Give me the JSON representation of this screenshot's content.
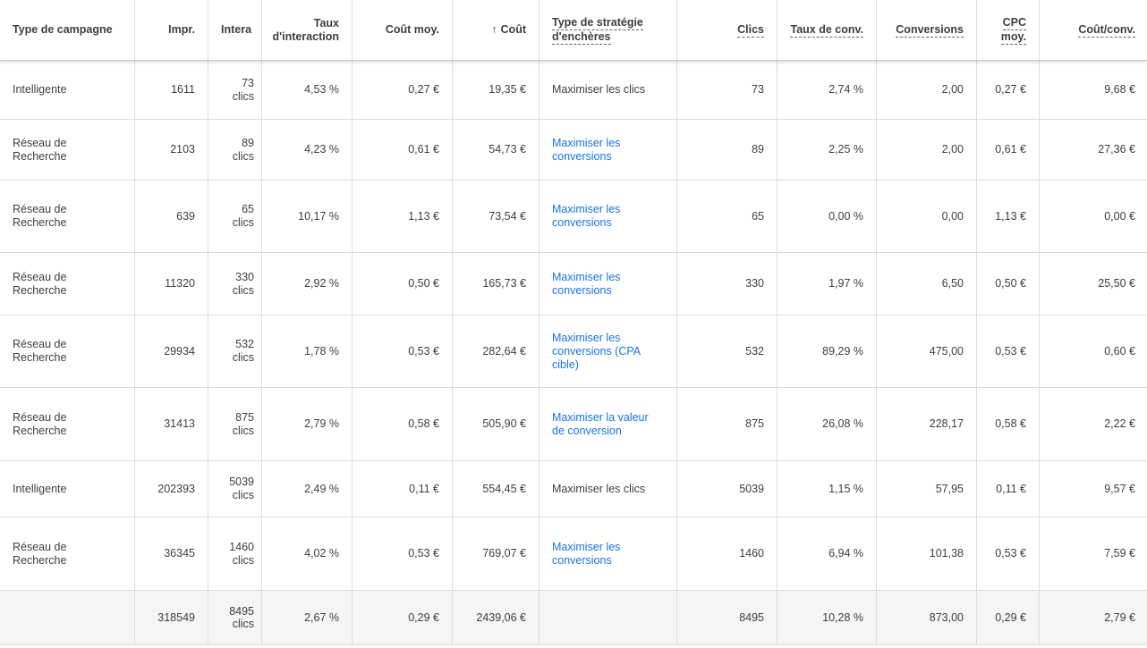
{
  "header": {
    "type": "Type de campagne",
    "impr": "Impr.",
    "inter": "Intera",
    "taux_interaction_l1": "Taux",
    "taux_interaction_l2": "d'interaction",
    "cout_moy": "Coût moy.",
    "cout_arrow": "↑",
    "cout": "Coût",
    "strat_l1": "Type de stratégie",
    "strat_l2": "d'enchères",
    "clics": "Clics",
    "taux_conv": "Taux de conv.",
    "conversions": "Conversions",
    "cpc_l1": "CPC",
    "cpc_l2": "moy.",
    "cout_conv": "Coût/conv."
  },
  "rows": [
    {
      "type": "Intelligente",
      "impr": "1611",
      "inter_n": "73",
      "inter_u": "clics",
      "taux": "4,53 %",
      "cout_moy": "0,27 €",
      "cout": "19,35 €",
      "strat": "Maximiser les clics",
      "strat_link": false,
      "clics": "73",
      "taux_conv": "2,74 %",
      "conv": "2,00",
      "cpc": "0,27 €",
      "cout_conv": "9,68 €"
    },
    {
      "type": "Réseau de Recherche",
      "impr": "2103",
      "inter_n": "89",
      "inter_u": "clics",
      "taux": "4,23 %",
      "cout_moy": "0,61 €",
      "cout": "54,73 €",
      "strat": "Maximiser les conversions",
      "strat_link": true,
      "clics": "89",
      "taux_conv": "2,25 %",
      "conv": "2,00",
      "cpc": "0,61 €",
      "cout_conv": "27,36 €"
    },
    {
      "type": "Réseau de Recherche",
      "impr": "639",
      "inter_n": "65",
      "inter_u": "clics",
      "taux": "10,17 %",
      "cout_moy": "1,13 €",
      "cout": "73,54 €",
      "strat": "Maximiser les conversions",
      "strat_link": true,
      "clics": "65",
      "taux_conv": "0,00 %",
      "conv": "0,00",
      "cpc": "1,13 €",
      "cout_conv": "0,00 €"
    },
    {
      "type": "Réseau de Recherche",
      "impr": "11320",
      "inter_n": "330",
      "inter_u": "clics",
      "taux": "2,92 %",
      "cout_moy": "0,50 €",
      "cout": "165,73 €",
      "strat": "Maximiser les conversions",
      "strat_link": true,
      "clics": "330",
      "taux_conv": "1,97 %",
      "conv": "6,50",
      "cpc": "0,50 €",
      "cout_conv": "25,50 €"
    },
    {
      "type": "Réseau de Recherche",
      "impr": "29934",
      "inter_n": "532",
      "inter_u": "clics",
      "taux": "1,78 %",
      "cout_moy": "0,53 €",
      "cout": "282,64 €",
      "strat": "Maximiser les conversions (CPA cible)",
      "strat_link": true,
      "clics": "532",
      "taux_conv": "89,29 %",
      "conv": "475,00",
      "cpc": "0,53 €",
      "cout_conv": "0,60 €"
    },
    {
      "type": "Réseau de Recherche",
      "impr": "31413",
      "inter_n": "875",
      "inter_u": "clics",
      "taux": "2,79 %",
      "cout_moy": "0,58 €",
      "cout": "505,90 €",
      "strat": "Maximiser la valeur de conversion",
      "strat_link": true,
      "clics": "875",
      "taux_conv": "26,08 %",
      "conv": "228,17",
      "cpc": "0,58 €",
      "cout_conv": "2,22 €"
    },
    {
      "type": "Intelligente",
      "impr": "202393",
      "inter_n": "5039",
      "inter_u": "clics",
      "taux": "2,49 %",
      "cout_moy": "0,11 €",
      "cout": "554,45 €",
      "strat": "Maximiser les clics",
      "strat_link": false,
      "clics": "5039",
      "taux_conv": "1,15 %",
      "conv": "57,95",
      "cpc": "0,11 €",
      "cout_conv": "9,57 €"
    },
    {
      "type": "Réseau de Recherche",
      "impr": "36345",
      "inter_n": "1460",
      "inter_u": "clics",
      "taux": "4,02 %",
      "cout_moy": "0,53 €",
      "cout": "769,07 €",
      "strat": "Maximiser les conversions",
      "strat_link": true,
      "clics": "1460",
      "taux_conv": "6,94 %",
      "conv": "101,38",
      "cpc": "0,53 €",
      "cout_conv": "7,59 €"
    }
  ],
  "total": {
    "type": "",
    "impr": "318549",
    "inter_n": "8495",
    "inter_u": "clics",
    "taux": "2,67 %",
    "cout_moy": "0,29 €",
    "cout": "2439,06 €",
    "strat": "",
    "clics": "8495",
    "taux_conv": "10,28 %",
    "conv": "873,00",
    "cpc": "0,29 €",
    "cout_conv": "2,79 €"
  },
  "colors": {
    "link": "#1a73e8",
    "text": "#3c4043",
    "border": "#dadce0",
    "total_bg": "#f4f5f4"
  }
}
